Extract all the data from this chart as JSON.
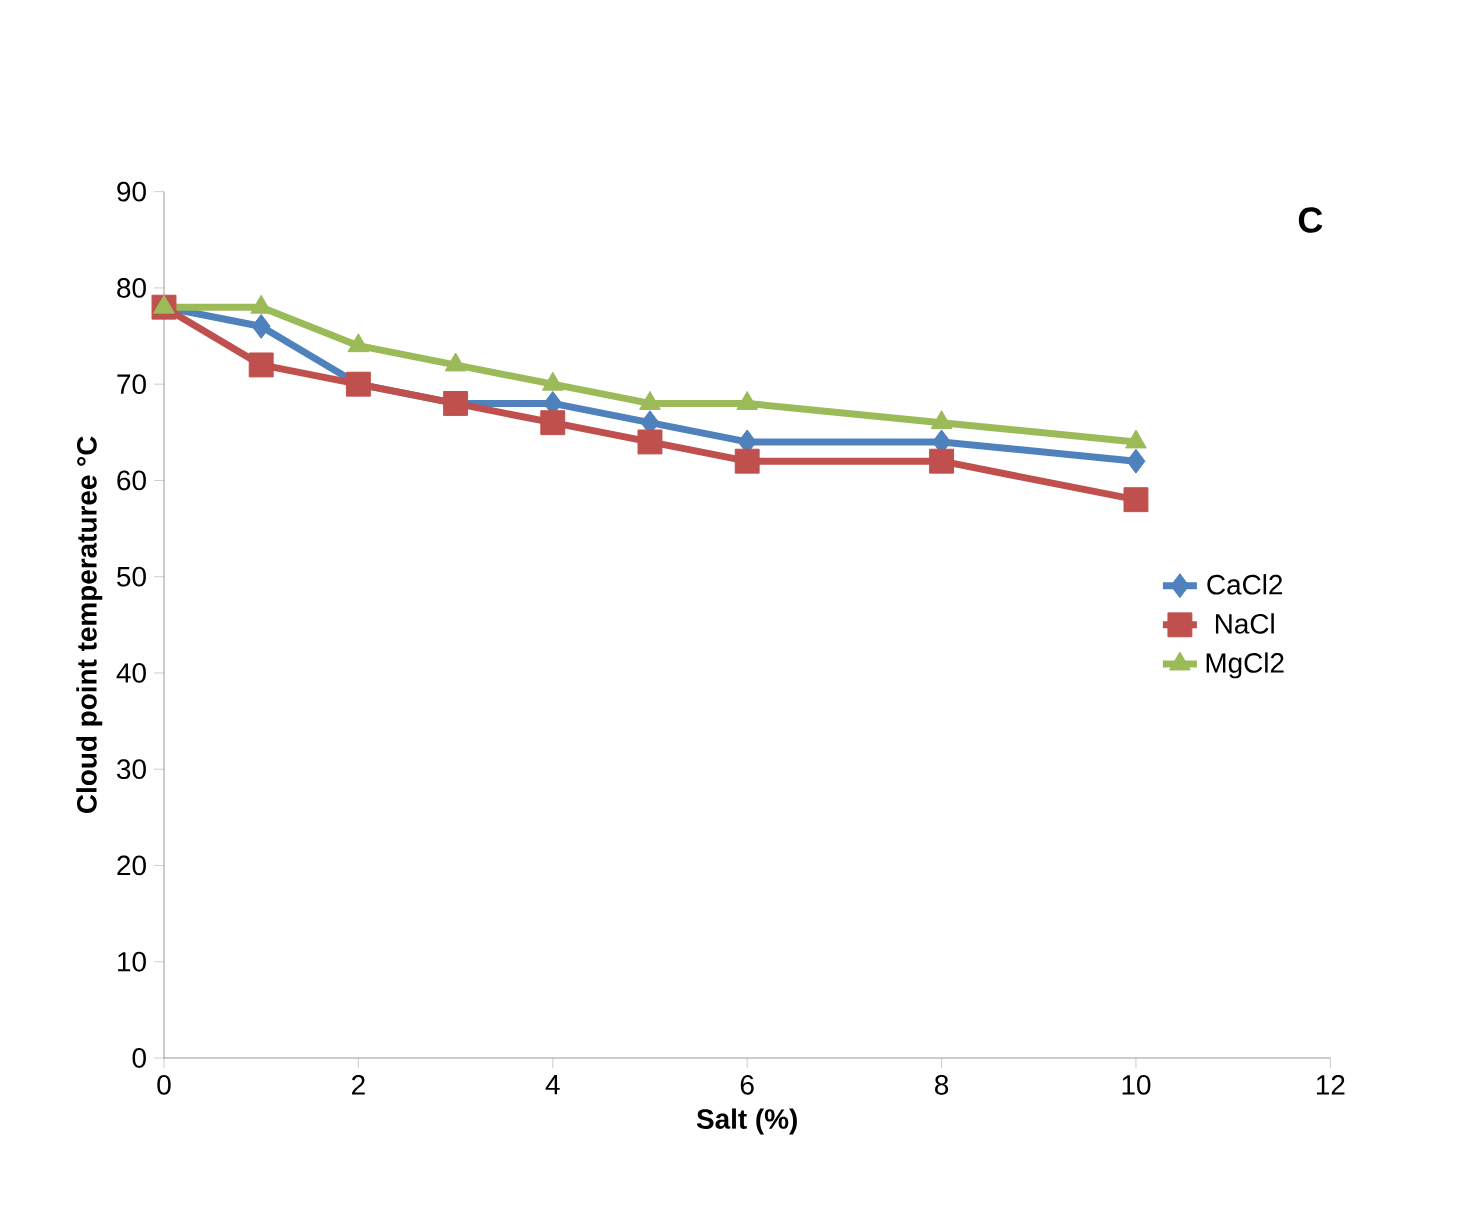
{
  "chart_data": {
    "type": "line",
    "xlabel": "Salt (%)",
    "ylabel": "Cloud point temperaturee °C",
    "annotations": [
      "C"
    ],
    "xlim": [
      0,
      12
    ],
    "xticks": [
      0,
      2,
      4,
      6,
      8,
      10,
      12
    ],
    "ylim": [
      0,
      90
    ],
    "yticks": [
      0,
      10,
      20,
      30,
      40,
      50,
      60,
      70,
      80,
      90
    ],
    "grid": false,
    "legend": "right",
    "line_style": "solid",
    "x": [
      0,
      1,
      2,
      3,
      4,
      5,
      6,
      8,
      10
    ],
    "series": [
      {
        "name": "CaCl2",
        "color": "#4f81bd",
        "marker": "diamond",
        "values": [
          78,
          76,
          70,
          68,
          68,
          66,
          64,
          64,
          62
        ]
      },
      {
        "name": "NaCl",
        "color": "#c0504d",
        "marker": "square",
        "values": [
          78,
          72,
          70,
          68,
          66,
          64,
          62,
          62,
          58
        ]
      },
      {
        "name": "MgCl2",
        "color": "#9bbb59",
        "marker": "triangle",
        "values": [
          78,
          78,
          74,
          72,
          70,
          68,
          68,
          66,
          64
        ]
      }
    ]
  }
}
